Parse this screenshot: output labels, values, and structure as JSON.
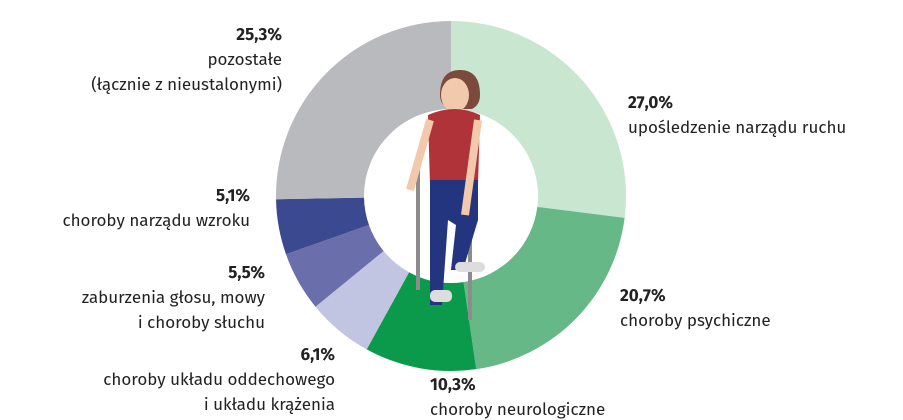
{
  "chart_data": {
    "type": "pie",
    "donut": true,
    "categories": [
      "upośledzenie narządu ruchu",
      "choroby psychiczne",
      "choroby neurologiczne",
      "choroby układu oddechowego\ni układu krążenia",
      "zaburzenia głosu, mowy\ni choroby słuchu",
      "choroby narządu wzroku",
      "pozostałe\n(łącznie z nieustalonymi)"
    ],
    "values": [
      27.0,
      20.7,
      10.3,
      6.1,
      5.5,
      5.1,
      25.3
    ],
    "value_labels": [
      "27,0%",
      "20,7%",
      "10,3%",
      "6,1%",
      "5,5%",
      "5,1%",
      "25,3%"
    ],
    "colors": [
      "#c9e6d0",
      "#66b887",
      "#0b9a4b",
      "#c1c5e1",
      "#6a6eaa",
      "#3b4a90",
      "#b9babe"
    ]
  }
}
